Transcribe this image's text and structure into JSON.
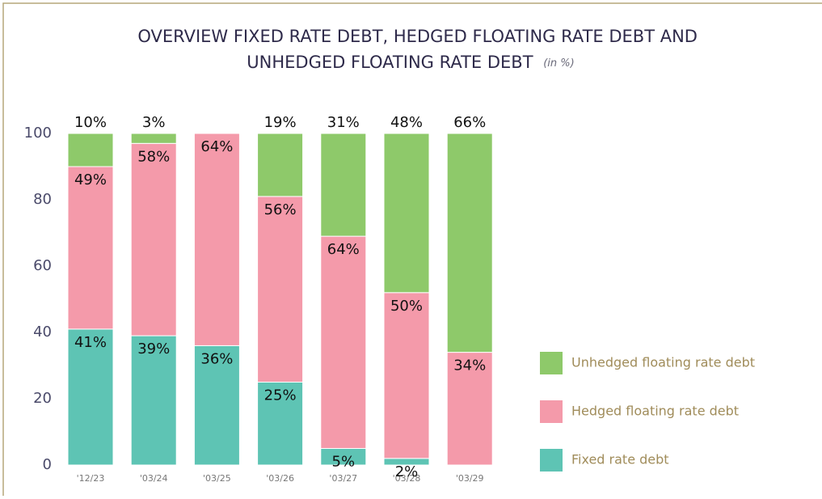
{
  "chart_data": {
    "type": "stacked_bar",
    "title": "OVERVIEW FIXED RATE DEBT, HEDGED FLOATING RATE DEBT AND UNHEDGED FLOATING RATE DEBT",
    "title_note": "(in %)",
    "categories": [
      "'12/23",
      "'03/24",
      "'03/25",
      "'03/26",
      "'03/27",
      "'03/28",
      "'03/29"
    ],
    "series": [
      {
        "name": "Fixed rate debt",
        "color": "#5ec4b4",
        "values": [
          41,
          39,
          36,
          25,
          5,
          2,
          0
        ],
        "value_labels": [
          "41%",
          "39%",
          "36%",
          "25%",
          "5%",
          "2%",
          null
        ]
      },
      {
        "name": "Hedged floating rate debt",
        "color": "#f49aaa",
        "values": [
          49,
          58,
          64,
          56,
          64,
          50,
          34
        ],
        "value_labels": [
          "49%",
          "58%",
          "64%",
          "56%",
          "64%",
          "50%",
          "34%"
        ]
      },
      {
        "name": "Unhedged floating rate debt",
        "color": "#8ec96a",
        "values": [
          10,
          3,
          0,
          19,
          31,
          48,
          66
        ],
        "value_labels": [
          "10%",
          "3%",
          null,
          "19%",
          "31%",
          "48%",
          "66%"
        ]
      }
    ],
    "ylim": [
      0,
      100
    ],
    "yticks": [
      0,
      20,
      40,
      60,
      80,
      100
    ]
  }
}
